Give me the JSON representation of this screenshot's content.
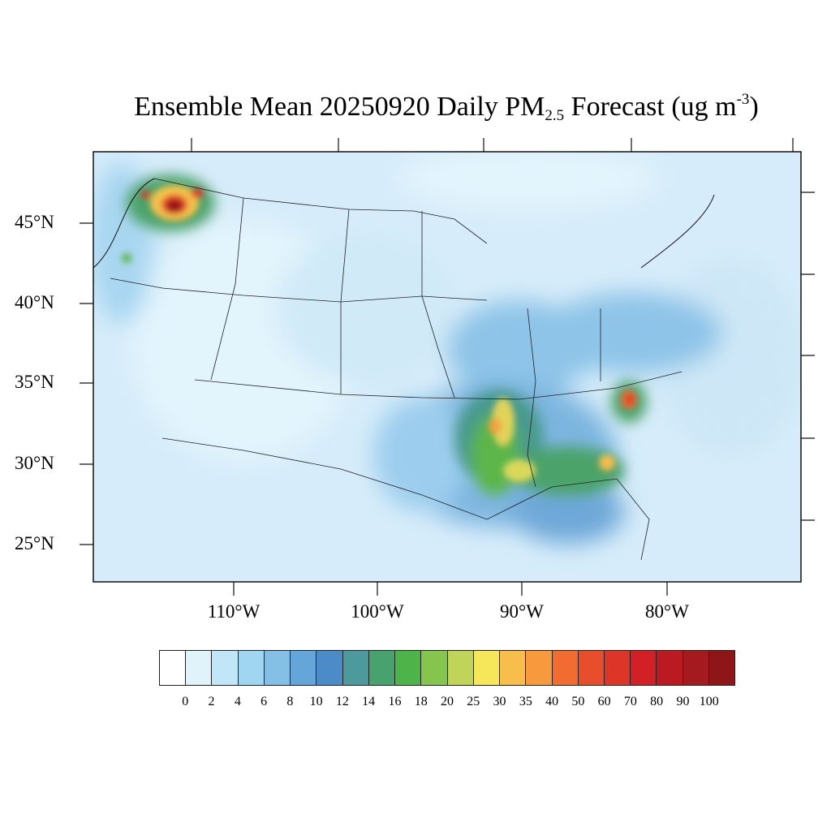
{
  "title": {
    "main": "Ensemble Mean 20250920 Daily PM",
    "sub": "2.5",
    "units_pre": " Forecast (ug m",
    "units_sup": "-3",
    "units_post": ")"
  },
  "map": {
    "projection": "lambert-conformal",
    "region": "Contiguous United States",
    "lat_labels": [
      "45°N",
      "40°N",
      "35°N",
      "30°N",
      "25°N"
    ],
    "lon_labels": [
      "110°W",
      "100°W",
      "90°W",
      "80°W"
    ],
    "background_color": "#d6ecfa",
    "hotspots": [
      {
        "region": "Washington / Oregon",
        "level": "80-100"
      },
      {
        "region": "Lower Mississippi Valley",
        "level": "25-40"
      },
      {
        "region": "North Carolina / South Carolina",
        "level": "35-60"
      },
      {
        "region": "Southern Georgia / Alabama",
        "level": "25-35"
      }
    ]
  },
  "colorbar": {
    "colors": [
      "#ffffff",
      "#e0f3fb",
      "#c1e6f7",
      "#a1d6f2",
      "#84bfe6",
      "#64a6d9",
      "#4a8bc8",
      "#4d9a9c",
      "#48a26e",
      "#4cb448",
      "#86c54d",
      "#c0d459",
      "#f6e65a",
      "#f7be4c",
      "#f69a3d",
      "#f26b31",
      "#e84e2c",
      "#dd3628",
      "#d32027",
      "#bb1a22",
      "#a51a1e",
      "#8e1619"
    ],
    "labels": [
      "0",
      "2",
      "4",
      "6",
      "8",
      "10",
      "12",
      "14",
      "16",
      "18",
      "20",
      "25",
      "30",
      "35",
      "40",
      "50",
      "60",
      "70",
      "80",
      "90",
      "100"
    ]
  }
}
